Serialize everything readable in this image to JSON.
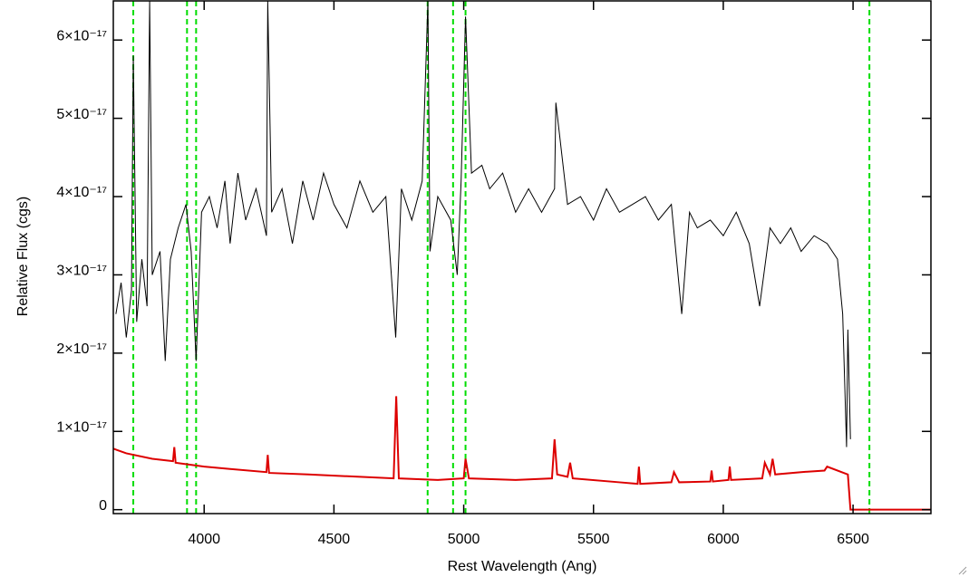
{
  "chart_data": {
    "type": "line",
    "xlabel": "Rest Wavelength (Ang)",
    "ylabel": "Relative Flux (cgs)",
    "xlim": [
      3650,
      6800
    ],
    "ylim": [
      -5e-19,
      6.5e-17
    ],
    "xticks": [
      4000,
      4500,
      5000,
      5500,
      6000,
      6500
    ],
    "yticks": [
      0,
      {
        "value": 1e-17,
        "label": "1×10⁻¹⁷"
      },
      {
        "value": 2e-17,
        "label": "2×10⁻¹⁷"
      },
      {
        "value": 3e-17,
        "label": "3×10⁻¹⁷"
      },
      {
        "value": 4e-17,
        "label": "4×10⁻¹⁷"
      },
      {
        "value": 5e-17,
        "label": "5×10⁻¹⁷"
      },
      {
        "value": 6e-17,
        "label": "6×10⁻¹⁷"
      }
    ],
    "series": [
      {
        "color": "#000000",
        "x": [
          3660,
          3680,
          3700,
          3720,
          3727,
          3740,
          3760,
          3780,
          3790,
          3800,
          3830,
          3850,
          3870,
          3900,
          3930,
          3950,
          3969,
          3990,
          4020,
          4050,
          4080,
          4100,
          4130,
          4160,
          4200,
          4240,
          4245,
          4260,
          4300,
          4340,
          4380,
          4420,
          4460,
          4500,
          4550,
          4600,
          4650,
          4700,
          4738,
          4760,
          4800,
          4840,
          4862,
          4870,
          4900,
          4950,
          4975,
          4990,
          5007,
          5030,
          5070,
          5100,
          5150,
          5200,
          5250,
          5300,
          5350,
          5355,
          5400,
          5450,
          5500,
          5550,
          5600,
          5650,
          5700,
          5750,
          5800,
          5840,
          5870,
          5900,
          5950,
          6000,
          6050,
          6100,
          6140,
          6180,
          6220,
          6260,
          6300,
          6350,
          6400,
          6440,
          6460,
          6475,
          6480,
          6490
        ],
        "values": [
          2.5e-17,
          2.9e-17,
          2.2e-17,
          2.8e-17,
          5.8e-17,
          2.4e-17,
          3.2e-17,
          2.6e-17,
          6.5e-17,
          3e-17,
          3.3e-17,
          1.9e-17,
          3.2e-17,
          3.6e-17,
          3.9e-17,
          3.3e-17,
          1.9e-17,
          3.8e-17,
          4e-17,
          3.6e-17,
          4.2e-17,
          3.4e-17,
          4.3e-17,
          3.7e-17,
          4.1e-17,
          3.5e-17,
          6.5e-17,
          3.8e-17,
          4.1e-17,
          3.4e-17,
          4.2e-17,
          3.7e-17,
          4.3e-17,
          3.9e-17,
          3.6e-17,
          4.2e-17,
          3.8e-17,
          4e-17,
          2.2e-17,
          4.1e-17,
          3.7e-17,
          4.2e-17,
          6.5e-17,
          3.3e-17,
          4e-17,
          3.7e-17,
          3e-17,
          4.2e-17,
          6.3e-17,
          4.3e-17,
          4.4e-17,
          4.1e-17,
          4.3e-17,
          3.8e-17,
          4.1e-17,
          3.8e-17,
          4.1e-17,
          5.2e-17,
          3.9e-17,
          4e-17,
          3.7e-17,
          4.1e-17,
          3.8e-17,
          3.9e-17,
          4e-17,
          3.7e-17,
          3.9e-17,
          2.5e-17,
          3.8e-17,
          3.6e-17,
          3.7e-17,
          3.5e-17,
          3.8e-17,
          3.4e-17,
          2.6e-17,
          3.6e-17,
          3.4e-17,
          3.6e-17,
          3.3e-17,
          3.5e-17,
          3.4e-17,
          3.2e-17,
          2.5e-17,
          8e-18,
          2.3e-17,
          9e-18
        ]
      },
      {
        "color": "#dd0000",
        "x": [
          3650,
          3700,
          3800,
          3880,
          3885,
          3890,
          4000,
          4100,
          4240,
          4245,
          4250,
          4400,
          4600,
          4730,
          4740,
          4750,
          4900,
          5000,
          5007,
          5020,
          5200,
          5340,
          5350,
          5360,
          5400,
          5410,
          5420,
          5600,
          5670,
          5675,
          5680,
          5800,
          5810,
          5830,
          5950,
          5955,
          5960,
          6020,
          6025,
          6030,
          6150,
          6160,
          6180,
          6190,
          6200,
          6300,
          6390,
          6400,
          6480,
          6490,
          6800
        ],
        "values": [
          7.8e-18,
          7.2e-18,
          6.5e-18,
          6.2e-18,
          8e-18,
          6e-18,
          5.5e-18,
          5.2e-18,
          4.8e-18,
          7e-18,
          4.7e-18,
          4.5e-18,
          4.2e-18,
          4e-18,
          1.45e-17,
          4e-18,
          3.8e-18,
          4e-18,
          6.5e-18,
          4e-18,
          3.8e-18,
          4e-18,
          9e-18,
          4.5e-18,
          4.2e-18,
          6e-18,
          4e-18,
          3.5e-18,
          3.3e-18,
          5.5e-18,
          3.3e-18,
          3.5e-18,
          4.8e-18,
          3.5e-18,
          3.6e-18,
          5e-18,
          3.6e-18,
          3.8e-18,
          5.5e-18,
          3.8e-18,
          4e-18,
          6e-18,
          4.5e-18,
          6.5e-18,
          4.5e-18,
          4.8e-18,
          5e-18,
          5.5e-18,
          4.5e-18,
          0,
          0
        ]
      }
    ],
    "markers": {
      "color": "#00dd00",
      "x": [
        3727,
        3934,
        3969,
        4861,
        4959,
        5007,
        6563
      ]
    }
  }
}
